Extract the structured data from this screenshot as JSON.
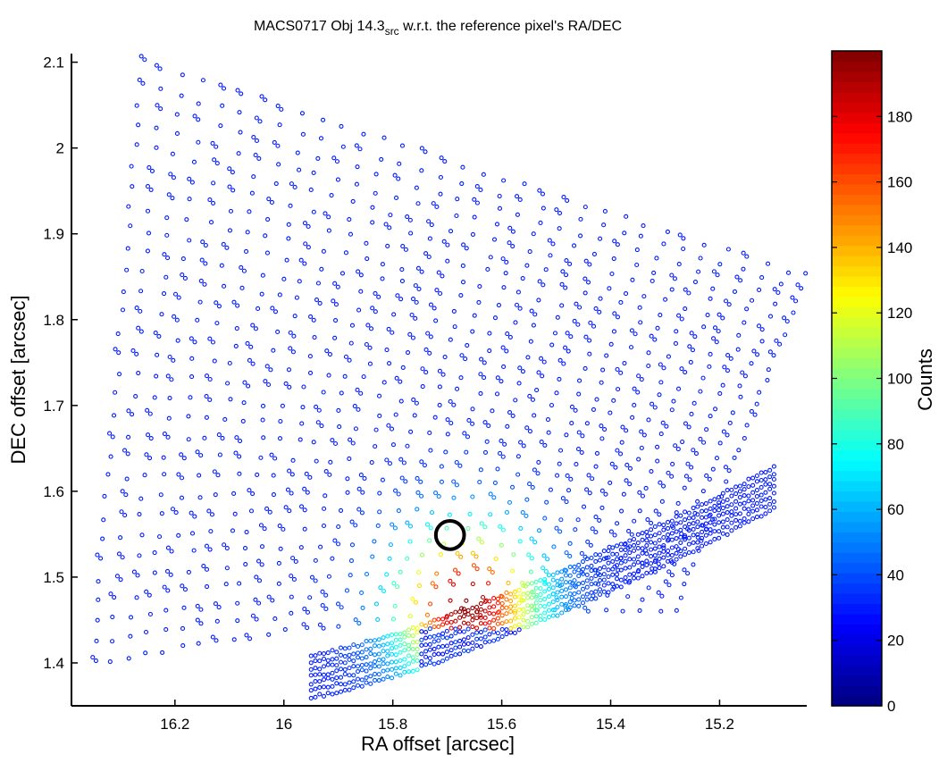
{
  "chart_data": {
    "type": "scatter",
    "title": {
      "prefix": "MACS0717 Obj 14.3",
      "subscript": "src",
      "suffix": " w.r.t. the reference pixel's RA/DEC"
    },
    "xlabel": "RA offset [arcsec]",
    "ylabel": "DEC offset [arcsec]",
    "xlim": [
      15.04,
      16.39
    ],
    "ylim": [
      1.35,
      2.11
    ],
    "x_reversed": true,
    "xticks": [
      "16.2",
      "16",
      "15.8",
      "15.6",
      "15.4",
      "15.2"
    ],
    "yticks": [
      "1.4",
      "1.5",
      "1.6",
      "1.7",
      "1.8",
      "1.9",
      "2",
      "2.1"
    ],
    "grid": false,
    "marker_circle": {
      "x": 15.695,
      "y": 1.549,
      "radius_arcsec": 0.026
    },
    "peak": {
      "x": 15.665,
      "y": 1.468,
      "value": 198
    },
    "colorbar": {
      "label": "Counts",
      "range": [
        0,
        200
      ],
      "ticks": [
        "0",
        "20",
        "40",
        "60",
        "80",
        "100",
        "120",
        "140",
        "160",
        "180"
      ],
      "colormap": "jet"
    }
  }
}
